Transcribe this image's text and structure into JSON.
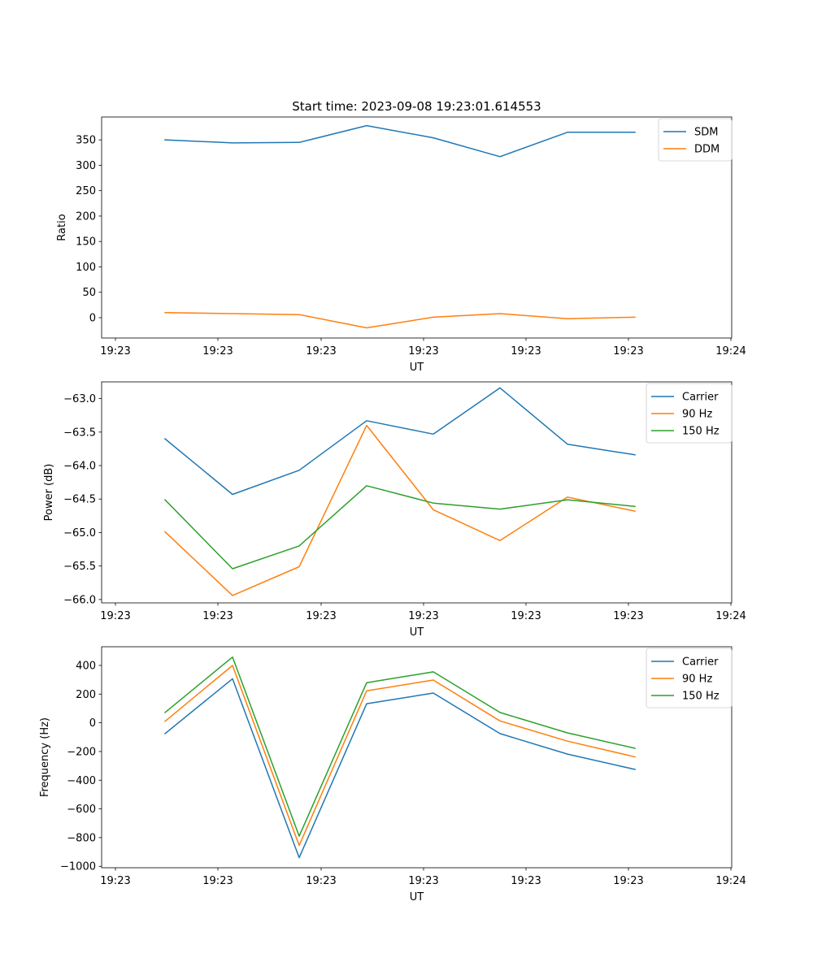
{
  "chart_data": [
    {
      "type": "line",
      "title": "Start time: 2023-09-08 19:23:01.614553",
      "xlabel": "UT",
      "ylabel": "Ratio",
      "x_ticks": [
        "19:23",
        "19:23",
        "19:23",
        "19:23",
        "19:23",
        "19:23",
        "19:24"
      ],
      "ylim": [
        -40,
        395
      ],
      "y_ticks": [
        0,
        50,
        100,
        150,
        200,
        250,
        300,
        350
      ],
      "legend": "upper right",
      "series": [
        {
          "name": "SDM",
          "color": "#1f77b4",
          "values": [
            350,
            344,
            345,
            378,
            354,
            317,
            365,
            365
          ]
        },
        {
          "name": "DDM",
          "color": "#ff7f0e",
          "values": [
            10,
            8,
            6,
            -20,
            1,
            8,
            -2,
            1
          ]
        }
      ]
    },
    {
      "type": "line",
      "title": "",
      "xlabel": "UT",
      "ylabel": "Power (dB)",
      "x_ticks": [
        "19:23",
        "19:23",
        "19:23",
        "19:23",
        "19:23",
        "19:23",
        "19:24"
      ],
      "ylim": [
        -66.05,
        -62.75
      ],
      "y_ticks": [
        -66.0,
        -65.5,
        -65.0,
        -64.5,
        -64.0,
        -63.5,
        -63.0
      ],
      "y_tick_labels": [
        "−66.0",
        "−65.5",
        "−65.0",
        "−64.5",
        "−64.0",
        "−63.5",
        "−63.0"
      ],
      "legend": "upper right",
      "series": [
        {
          "name": "Carrier",
          "color": "#1f77b4",
          "values": [
            -63.6,
            -64.43,
            -64.07,
            -63.33,
            -63.53,
            -62.84,
            -63.68,
            -63.84
          ]
        },
        {
          "name": "90 Hz",
          "color": "#ff7f0e",
          "values": [
            -64.99,
            -65.94,
            -65.51,
            -63.4,
            -64.66,
            -65.12,
            -64.47,
            -64.68
          ]
        },
        {
          "name": "150 Hz",
          "color": "#2ca02c",
          "values": [
            -64.51,
            -65.54,
            -65.2,
            -64.3,
            -64.56,
            -64.65,
            -64.51,
            -64.61
          ]
        }
      ]
    },
    {
      "type": "line",
      "title": "",
      "xlabel": "UT",
      "ylabel": "Frequency (Hz)",
      "x_ticks": [
        "19:23",
        "19:23",
        "19:23",
        "19:23",
        "19:23",
        "19:23",
        "19:24"
      ],
      "ylim": [
        -1010,
        530
      ],
      "y_ticks": [
        -1000,
        -800,
        -600,
        -400,
        -200,
        0,
        200,
        400
      ],
      "y_tick_labels": [
        "−1000",
        "−800",
        "−600",
        "−400",
        "−200",
        "0",
        "200",
        "400"
      ],
      "legend": "upper right",
      "series": [
        {
          "name": "Carrier",
          "color": "#1f77b4",
          "values": [
            -75,
            307,
            -940,
            133,
            207,
            -75,
            -218,
            -325
          ]
        },
        {
          "name": "90 Hz",
          "color": "#ff7f0e",
          "values": [
            10,
            400,
            -855,
            223,
            298,
            13,
            -128,
            -237
          ]
        },
        {
          "name": "150 Hz",
          "color": "#2ca02c",
          "values": [
            72,
            458,
            -790,
            280,
            355,
            72,
            -70,
            -178
          ]
        }
      ]
    }
  ]
}
